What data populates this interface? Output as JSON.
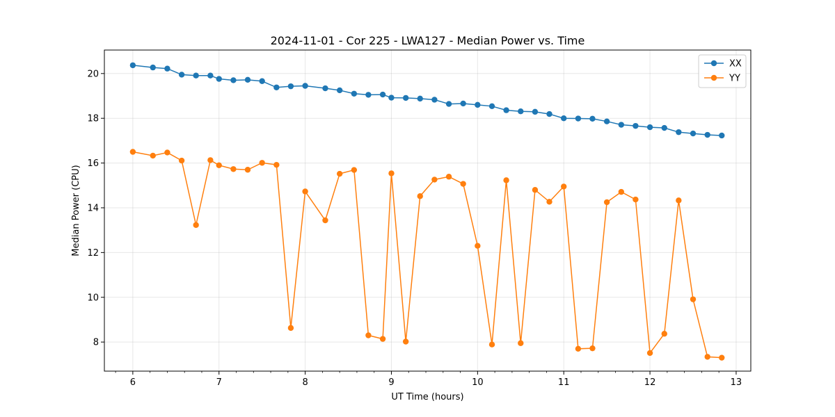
{
  "chart_data": {
    "type": "line",
    "title": "2024-11-01 - Cor 225 - LWA127 - Median Power vs. Time",
    "xlabel": "UT Time (hours)",
    "ylabel": "Median Power (CPU)",
    "xlim": [
      5.67,
      13.17
    ],
    "ylim": [
      6.7,
      21.05
    ],
    "xticks": [
      6,
      7,
      8,
      9,
      10,
      11,
      12,
      13
    ],
    "xtick_labels": [
      "6",
      "7",
      "8",
      "9",
      "10",
      "11",
      "12",
      "13"
    ],
    "yticks": [
      8,
      10,
      12,
      14,
      16,
      18,
      20
    ],
    "ytick_labels": [
      "8",
      "10",
      "12",
      "14",
      "16",
      "18",
      "20"
    ],
    "grid": true,
    "legend_position": "top-right",
    "x": [
      6.0,
      6.233,
      6.4,
      6.567,
      6.733,
      6.9,
      7.0,
      7.167,
      7.333,
      7.5,
      7.667,
      7.833,
      8.0,
      8.233,
      8.4,
      8.567,
      8.733,
      8.9,
      9.0,
      9.167,
      9.333,
      9.5,
      9.667,
      9.833,
      10.0,
      10.167,
      10.333,
      10.5,
      10.667,
      10.833,
      11.0,
      11.167,
      11.333,
      11.5,
      11.667,
      11.833,
      12.0,
      12.167,
      12.333,
      12.5,
      12.667,
      12.833
    ],
    "series": [
      {
        "name": "XX",
        "color": "#1f77b4",
        "values": [
          20.37,
          20.27,
          20.22,
          19.95,
          19.91,
          19.91,
          19.76,
          19.7,
          19.72,
          19.66,
          19.38,
          19.43,
          19.45,
          19.34,
          19.25,
          19.1,
          19.05,
          19.06,
          18.92,
          18.91,
          18.88,
          18.83,
          18.64,
          18.66,
          18.6,
          18.54,
          18.36,
          18.31,
          18.29,
          18.19,
          18.0,
          17.99,
          17.98,
          17.86,
          17.71,
          17.66,
          17.6,
          17.57,
          17.38,
          17.32,
          17.26,
          17.23
        ]
      },
      {
        "name": "YY",
        "color": "#ff7f0e",
        "values": [
          16.5,
          16.33,
          16.47,
          16.11,
          13.23,
          16.13,
          15.9,
          15.73,
          15.7,
          16.01,
          15.92,
          8.63,
          14.73,
          13.44,
          15.52,
          15.69,
          8.3,
          8.14,
          15.54,
          8.02,
          14.52,
          15.26,
          15.39,
          15.07,
          12.3,
          7.89,
          15.23,
          7.95,
          14.8,
          14.27,
          14.95,
          7.7,
          7.72,
          14.25,
          14.71,
          14.37,
          7.51,
          8.37,
          14.33,
          9.91,
          7.34,
          7.3
        ]
      }
    ]
  }
}
